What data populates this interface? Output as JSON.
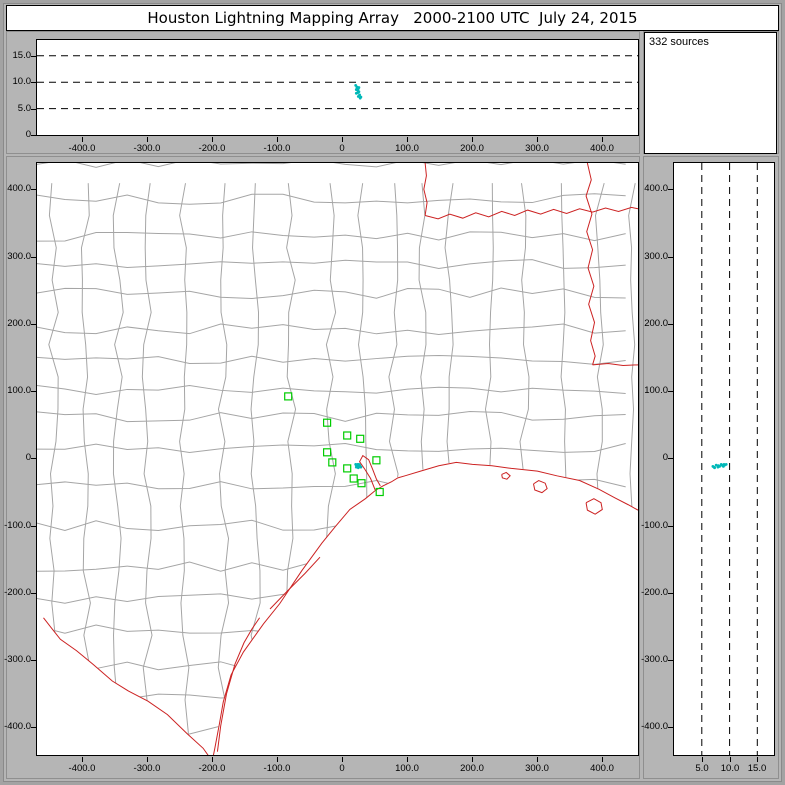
{
  "title": "Houston Lightning Mapping Array   2000-2100 UTC  July 24, 2015",
  "sources_panel": {
    "label": "332 sources"
  },
  "colors": {
    "panel_bg": "#b5b5b5",
    "plot_bg": "#ffffff",
    "state_border": "#cc2222",
    "county": "#a5a5a5",
    "station": "#00cc00",
    "source": "#00b8b8",
    "axis": "#000000"
  },
  "axes": {
    "east_west_ticks": [
      {
        "value": -400,
        "label": "-400.0"
      },
      {
        "value": -300,
        "label": "-300.0"
      },
      {
        "value": -200,
        "label": "-200.0"
      },
      {
        "value": -100,
        "label": "-100.0"
      },
      {
        "value": 0,
        "label": "0"
      },
      {
        "value": 100,
        "label": "100.0"
      },
      {
        "value": 200,
        "label": "200.0"
      },
      {
        "value": 300,
        "label": "300.0"
      },
      {
        "value": 400,
        "label": "400.0"
      }
    ],
    "north_south_ticks": [
      {
        "value": -400,
        "label": "-400.0"
      },
      {
        "value": -300,
        "label": "-300.0"
      },
      {
        "value": -200,
        "label": "-200.0"
      },
      {
        "value": -100,
        "label": "-100.0"
      },
      {
        "value": 0,
        "label": "0"
      },
      {
        "value": 100,
        "label": "100.0"
      },
      {
        "value": 200,
        "label": "200.0"
      },
      {
        "value": 300,
        "label": "300.0"
      },
      {
        "value": 400,
        "label": "400.0"
      }
    ],
    "altitude_ticks": [
      {
        "value": 0,
        "label": "0"
      },
      {
        "value": 5,
        "label": "5.0"
      },
      {
        "value": 10,
        "label": "10.0"
      },
      {
        "value": 15,
        "label": "15.0"
      }
    ],
    "altitude_ticks_bottom": [
      {
        "value": 5,
        "label": "5.0"
      },
      {
        "value": 10,
        "label": "10.0"
      },
      {
        "value": 15,
        "label": "15.0"
      }
    ]
  },
  "chart_data": {
    "type": "scatter",
    "title": "Houston Lightning Mapping Array   2000-2100 UTC  July 24, 2015",
    "source_count": 332,
    "altitude_gridlines": [
      5,
      10,
      15
    ],
    "views": [
      {
        "id": "altitude_vs_east_west",
        "xlim": [
          -470,
          456
        ],
        "ylim": [
          0,
          18
        ],
        "x_ticks": [
          -400,
          -300,
          -200,
          -100,
          0,
          100,
          200,
          300,
          400
        ],
        "y_ticks": [
          0,
          5,
          10,
          15
        ],
        "grid": "dashed-horizontal"
      },
      {
        "id": "plan_view_map",
        "xlim": [
          -470,
          456
        ],
        "ylim": [
          -441,
          439
        ],
        "x_ticks": [
          -400,
          -300,
          -200,
          -100,
          0,
          100,
          200,
          300,
          400
        ],
        "y_ticks": [
          -400,
          -300,
          -200,
          -100,
          0,
          100,
          200,
          300,
          400
        ],
        "grid": "off"
      },
      {
        "id": "altitude_vs_north_south",
        "xlim": [
          0,
          18
        ],
        "ylim": [
          -441,
          439
        ],
        "x_ticks": [
          5,
          10,
          15
        ],
        "y_ticks": [
          -400,
          -300,
          -200,
          -100,
          0,
          100,
          200,
          300,
          400
        ],
        "grid": "dashed-vertical"
      }
    ],
    "lightning_sources": [
      {
        "ew": 21,
        "ns": -9,
        "alt": 9.4
      },
      {
        "ew": 23,
        "ns": -10,
        "alt": 9.1
      },
      {
        "ew": 25,
        "ns": -11,
        "alt": 8.8
      },
      {
        "ew": 24,
        "ns": -9,
        "alt": 8.5
      },
      {
        "ew": 26,
        "ns": -12,
        "alt": 8.2
      },
      {
        "ew": 22,
        "ns": -13,
        "alt": 7.9
      },
      {
        "ew": 27,
        "ns": -10,
        "alt": 7.6
      },
      {
        "ew": 25,
        "ns": -14,
        "alt": 7.3
      },
      {
        "ew": 28,
        "ns": -12,
        "alt": 7.0
      },
      {
        "ew": 23,
        "ns": -12,
        "alt": 8.9
      },
      {
        "ew": 26,
        "ns": -9,
        "alt": 9.0
      },
      {
        "ew": 24,
        "ns": -11,
        "alt": 8.0
      },
      {
        "ew": 29,
        "ns": -13,
        "alt": 7.2
      },
      {
        "ew": 22,
        "ns": -10,
        "alt": 8.6
      }
    ],
    "lma_stations": [
      {
        "ew": -83,
        "ns": 92
      },
      {
        "ew": -23,
        "ns": 53
      },
      {
        "ew": 8,
        "ns": 34
      },
      {
        "ew": 28,
        "ns": 29
      },
      {
        "ew": -23,
        "ns": 9
      },
      {
        "ew": -15,
        "ns": -6
      },
      {
        "ew": 8,
        "ns": -15
      },
      {
        "ew": 18,
        "ns": -30
      },
      {
        "ew": 30,
        "ns": -37
      },
      {
        "ew": 53,
        "ns": -3
      },
      {
        "ew": 58,
        "ns": -50
      }
    ]
  }
}
